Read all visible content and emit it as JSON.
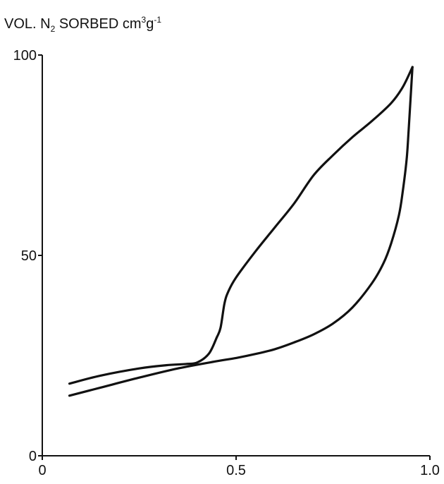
{
  "chart_data": {
    "type": "line",
    "title": "",
    "ylabel": {
      "prefix": "VOL. N",
      "sub": "2",
      "middle": " SORBED cm",
      "sup1": "3",
      "middle2": "g",
      "sup2": "-1"
    },
    "xlabel": "",
    "xlim": [
      0,
      1.0
    ],
    "ylim": [
      0,
      100
    ],
    "grid": false,
    "legend": "none",
    "x_ticks": [
      {
        "value": 0,
        "label": "0"
      },
      {
        "value": 0.5,
        "label": "0.5"
      },
      {
        "value": 1.0,
        "label": "1.0"
      }
    ],
    "y_ticks": [
      {
        "value": 0,
        "label": "0"
      },
      {
        "value": 50,
        "label": "50"
      },
      {
        "value": 100,
        "label": "100"
      }
    ],
    "line_color": "#111111",
    "series": [
      {
        "key": "upper-branch",
        "points": [
          [
            0.07,
            18.0
          ],
          [
            0.15,
            20.0
          ],
          [
            0.25,
            21.8
          ],
          [
            0.32,
            22.6
          ],
          [
            0.37,
            22.9
          ],
          [
            0.4,
            23.3
          ],
          [
            0.43,
            25.5
          ],
          [
            0.45,
            29.5
          ],
          [
            0.46,
            32.0
          ],
          [
            0.47,
            38.0
          ],
          [
            0.48,
            41.0
          ],
          [
            0.5,
            44.5
          ],
          [
            0.55,
            51.0
          ],
          [
            0.6,
            57.0
          ],
          [
            0.65,
            63.0
          ],
          [
            0.7,
            70.0
          ],
          [
            0.75,
            75.0
          ],
          [
            0.8,
            79.5
          ],
          [
            0.85,
            83.5
          ],
          [
            0.9,
            88.0
          ],
          [
            0.93,
            92.0
          ],
          [
            0.955,
            97.0
          ]
        ]
      },
      {
        "key": "lower-branch",
        "points": [
          [
            0.07,
            15.0
          ],
          [
            0.15,
            17.0
          ],
          [
            0.25,
            19.5
          ],
          [
            0.35,
            21.8
          ],
          [
            0.45,
            23.6
          ],
          [
            0.5,
            24.4
          ],
          [
            0.55,
            25.4
          ],
          [
            0.6,
            26.6
          ],
          [
            0.65,
            28.3
          ],
          [
            0.7,
            30.3
          ],
          [
            0.75,
            33.0
          ],
          [
            0.8,
            37.0
          ],
          [
            0.85,
            43.0
          ],
          [
            0.88,
            48.0
          ],
          [
            0.9,
            53.0
          ],
          [
            0.92,
            60.0
          ],
          [
            0.93,
            66.0
          ],
          [
            0.94,
            74.0
          ],
          [
            0.945,
            81.0
          ],
          [
            0.95,
            89.0
          ],
          [
            0.955,
            97.0
          ]
        ]
      }
    ]
  }
}
